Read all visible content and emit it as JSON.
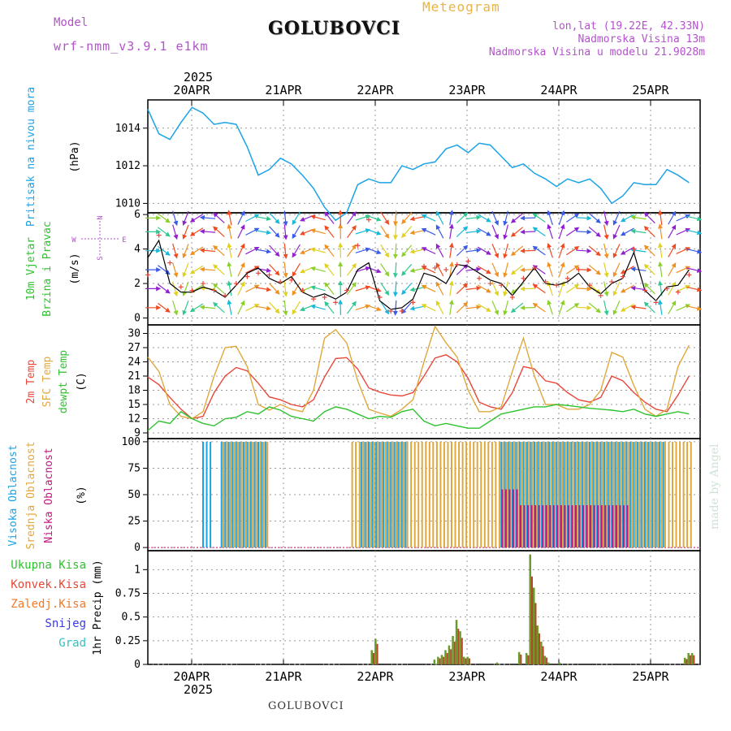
{
  "header": {
    "model_label": "Model",
    "model_name": "wrf-nmm_v3.9.1 e1km",
    "station": "GOLUBOVCI",
    "product": "Meteogram",
    "coords": "lon,lat (19.22E, 42.33N)",
    "elevation": "Nadmorska Visina 13m",
    "elevation_model": "Nadmorska Visina u modelu 21.9028m"
  },
  "footer": {
    "station": "GOLUBOVCI",
    "credit": "made by Angel"
  },
  "colors": {
    "pressure": "#1aa3e8",
    "t2m": "#e8473a",
    "sfc": "#e0a83c",
    "dewpt": "#2ec22e",
    "high_cloud": "#1aa3e8",
    "mid_cloud": "#e0a83c",
    "low_cloud": "#c0187e",
    "total_precip": "#2ec22e",
    "conv_precip": "#e8473a",
    "snow": "#3a3ae8",
    "hail": "#2ec2c2",
    "frozen": "#f07a28"
  },
  "chart_data": [
    {
      "type": "line",
      "id": "pressure",
      "ylabels": [
        "Pritisak na nivou mora",
        "(hPa)"
      ],
      "yticks": [
        1010,
        1012,
        1014
      ],
      "ylim": [
        1009.5,
        1015.5
      ],
      "x_day_labels": [
        "20APR",
        "21APR",
        "22APR",
        "23APR",
        "24APR",
        "25APR"
      ],
      "year_label": "2025",
      "grid": true,
      "x": [
        0,
        3,
        6,
        9,
        12,
        15,
        18,
        21,
        24,
        27,
        30,
        33,
        36,
        39,
        42,
        45,
        48,
        51,
        54,
        57,
        60,
        63,
        66,
        69,
        72,
        75,
        78,
        81,
        84,
        87,
        90,
        93,
        96,
        99,
        102,
        105,
        108,
        111,
        114,
        117,
        120,
        123,
        126,
        129,
        132,
        135,
        138,
        141,
        144,
        147
      ],
      "values": [
        1015.0,
        1013.7,
        1013.4,
        1014.3,
        1015.1,
        1014.8,
        1014.2,
        1014.3,
        1014.2,
        1013.0,
        1011.5,
        1011.8,
        1012.4,
        1012.1,
        1011.5,
        1010.8,
        1009.8,
        1009.1,
        1009.5,
        1011.0,
        1011.3,
        1011.1,
        1011.1,
        1012.0,
        1011.8,
        1012.1,
        1012.2,
        1012.9,
        1013.1,
        1012.7,
        1013.2,
        1013.1,
        1012.5,
        1011.9,
        1012.1,
        1011.6,
        1011.3,
        1010.9,
        1011.3,
        1011.1,
        1011.3,
        1010.8,
        1010.0,
        1010.4,
        1011.1,
        1011.0,
        1011.0,
        1011.8,
        1011.5,
        1011.1
      ]
    },
    {
      "type": "line",
      "id": "wind",
      "ylabels": [
        "10m Vjetar",
        "Brzina i Pravac",
        "(m/s)"
      ],
      "compass": [
        "N",
        "S",
        "W",
        "E"
      ],
      "yticks": [
        0,
        2,
        4,
        6
      ],
      "ylim": [
        -0.4,
        6.1
      ],
      "grid": true,
      "x": [
        0,
        3,
        6,
        9,
        12,
        15,
        18,
        21,
        24,
        27,
        30,
        33,
        36,
        39,
        42,
        45,
        48,
        51,
        54,
        57,
        60,
        63,
        66,
        69,
        72,
        75,
        78,
        81,
        84,
        87,
        90,
        93,
        96,
        99,
        102,
        105,
        108,
        111,
        114,
        117,
        120,
        123,
        126,
        129,
        132,
        135,
        138,
        141,
        144,
        147
      ],
      "speed": [
        3.5,
        4.5,
        2.0,
        1.5,
        1.5,
        1.8,
        1.6,
        1.2,
        1.9,
        2.6,
        2.9,
        2.3,
        2.0,
        2.4,
        1.5,
        1.2,
        1.4,
        1.1,
        1.5,
        2.8,
        3.2,
        1.0,
        0.5,
        0.6,
        1.1,
        2.6,
        2.4,
        2.0,
        3.1,
        3.0,
        2.6,
        2.2,
        2.0,
        1.3,
        2.1,
        2.9,
        2.0,
        1.9,
        2.1,
        2.6,
        1.8,
        1.4,
        2.0,
        2.3,
        3.8,
        1.6,
        1.0,
        1.8,
        1.9,
        2.8
      ],
      "gust": [
        2.5,
        4.8,
        3.2,
        1.8,
        1.6,
        2.0,
        1.6,
        1.3,
        2.0,
        2.4,
        2.6,
        2.5,
        2.1,
        2.2,
        1.6,
        1.1,
        1.2,
        0.9,
        1.6,
        4.2,
        5.7,
        1.2,
        0.4,
        0.4,
        0.9,
        3.0,
        2.9,
        2.8,
        3.1,
        3.3,
        2.3,
        2.0,
        1.9,
        1.2,
        2.3,
        2.9,
        2.1,
        1.9,
        2.3,
        2.8,
        1.9,
        1.3,
        2.1,
        2.4,
        4.0,
        1.6,
        0.9,
        1.7,
        1.5,
        2.5
      ],
      "arrows_per_level": [
        0.6,
        1.7,
        2.8,
        3.9,
        5.0,
        5.8
      ]
    },
    {
      "type": "line",
      "id": "temperature",
      "ylabels": [
        "2m Temp",
        "SFC Temp",
        "dewpt Temp",
        "(C)"
      ],
      "yticks": [
        9,
        12,
        15,
        18,
        21,
        24,
        27,
        30
      ],
      "ylim": [
        7.8,
        31.8
      ],
      "grid": true,
      "series": [
        {
          "name": "2m Temp",
          "key": "t2m",
          "x": [
            0,
            3,
            6,
            9,
            12,
            15,
            18,
            21,
            24,
            27,
            30,
            33,
            36,
            39,
            42,
            45,
            48,
            51,
            54,
            57,
            60,
            63,
            66,
            69,
            72,
            75,
            78,
            81,
            84,
            87,
            90,
            93,
            96,
            99,
            102,
            105,
            108,
            111,
            114,
            117,
            120,
            123,
            126,
            129,
            132,
            135,
            138,
            141,
            144,
            147
          ],
          "values": [
            20.8,
            19.2,
            16.5,
            14.0,
            12.0,
            12.5,
            17.5,
            21.0,
            22.8,
            22.1,
            19.5,
            16.6,
            16.0,
            15.0,
            14.5,
            16.0,
            20.8,
            24.7,
            24.9,
            22.5,
            18.5,
            17.6,
            17.0,
            16.8,
            17.5,
            21.0,
            24.8,
            25.5,
            24.0,
            20.5,
            15.5,
            14.5,
            14.0,
            17.5,
            23.0,
            22.5,
            20.0,
            19.5,
            17.5,
            16.0,
            15.5,
            16.5,
            21.0,
            20.0,
            17.5,
            15.5,
            14.0,
            13.5,
            17.0,
            21.0
          ]
        },
        {
          "name": "SFC Temp",
          "key": "sfc",
          "x": [
            0,
            3,
            6,
            9,
            12,
            15,
            18,
            21,
            24,
            27,
            30,
            33,
            36,
            39,
            42,
            45,
            48,
            51,
            54,
            57,
            60,
            63,
            66,
            69,
            72,
            75,
            78,
            81,
            84,
            87,
            90,
            93,
            96,
            99,
            102,
            105,
            108,
            111,
            114,
            117,
            120,
            123,
            126,
            129,
            132,
            135,
            138,
            141,
            144,
            147
          ],
          "values": [
            25.0,
            22.0,
            15.0,
            12.5,
            12.0,
            13.5,
            21.0,
            27.0,
            27.3,
            23.0,
            15.0,
            13.8,
            15.0,
            14.0,
            13.5,
            18.0,
            29.0,
            30.8,
            28.0,
            20.0,
            14.0,
            13.2,
            12.5,
            14.0,
            16.0,
            24.0,
            31.5,
            28.0,
            25.0,
            18.0,
            13.5,
            13.5,
            14.5,
            22.0,
            29.0,
            21.0,
            15.0,
            15.0,
            14.0,
            14.0,
            15.0,
            18.0,
            26.0,
            25.0,
            19.0,
            14.0,
            12.5,
            14.0,
            23.0,
            27.5
          ]
        },
        {
          "name": "dewpt Temp",
          "key": "dewpt",
          "x": [
            0,
            3,
            6,
            9,
            12,
            15,
            18,
            21,
            24,
            27,
            30,
            33,
            36,
            39,
            42,
            45,
            48,
            51,
            54,
            57,
            60,
            63,
            66,
            69,
            72,
            75,
            78,
            81,
            84,
            87,
            90,
            93,
            96,
            99,
            102,
            105,
            108,
            111,
            114,
            117,
            120,
            123,
            126,
            129,
            132,
            135,
            138,
            141,
            144,
            147
          ],
          "values": [
            9.5,
            11.5,
            11.0,
            13.5,
            12.0,
            11.0,
            10.5,
            12.0,
            12.3,
            13.5,
            13.0,
            14.5,
            13.8,
            12.5,
            12.0,
            11.5,
            13.5,
            14.5,
            14.0,
            13.0,
            12.0,
            12.5,
            12.3,
            13.5,
            14.0,
            11.5,
            10.5,
            11.0,
            10.5,
            10.0,
            10.0,
            11.5,
            13.0,
            13.5,
            14.0,
            14.5,
            14.5,
            15.0,
            14.8,
            14.5,
            14.2,
            14.0,
            13.8,
            13.5,
            14.0,
            13.0,
            12.5,
            13.0,
            13.5,
            13.0
          ]
        }
      ]
    },
    {
      "type": "bar",
      "id": "cloud",
      "ylabels": [
        "Visoka Oblacnost",
        "Srednja Oblacnost",
        "Niska Oblacnost",
        "(%)"
      ],
      "yticks": [
        0,
        25,
        50,
        75,
        100
      ],
      "ylim": [
        -3,
        103
      ],
      "grid": true,
      "segments": [
        {
          "key": "high",
          "x_range": [
            15,
            17
          ],
          "level": 100
        },
        {
          "key": "high",
          "x_range": [
            20,
            32
          ],
          "level": 100
        },
        {
          "key": "mid",
          "x_range": [
            20,
            32
          ],
          "level": 100
        },
        {
          "key": "mid",
          "x_range": [
            55,
            98
          ],
          "level": 100
        },
        {
          "key": "high",
          "x_range": [
            58,
            70
          ],
          "level": 100
        },
        {
          "key": "high",
          "x_range": [
            96,
            140
          ],
          "level": 100
        },
        {
          "key": "mid",
          "x_range": [
            98,
            147
          ],
          "level": 100
        },
        {
          "key": "low",
          "x_range": [
            96,
            100
          ],
          "level": 55
        },
        {
          "key": "low",
          "x_range": [
            101,
            130
          ],
          "level": 40
        }
      ]
    },
    {
      "type": "bar",
      "id": "precip",
      "ylabels": [
        "1hr Precip (mm)"
      ],
      "legend": [
        "Ukupna Kisa",
        "Konvek.Kisa",
        "Zaledj.Kisa",
        "Snijeg",
        "Grad"
      ],
      "yticks": [
        0,
        0.25,
        0.5,
        0.75,
        1
      ],
      "ytick_labels": [
        "0",
        "0.25",
        "0.5",
        "0.75",
        "1"
      ],
      "ylim": [
        0,
        1.2
      ],
      "grid": true,
      "x": [
        61,
        62,
        78,
        79,
        80,
        81,
        82,
        83,
        84,
        85,
        86,
        87,
        95,
        101,
        103,
        104,
        105,
        106,
        107,
        108,
        109,
        112,
        146,
        147,
        148
      ],
      "values": [
        0.15,
        0.27,
        0.05,
        0.08,
        0.1,
        0.15,
        0.2,
        0.3,
        0.47,
        0.35,
        0.08,
        0.08,
        0.02,
        0.13,
        0.12,
        1.16,
        0.81,
        0.41,
        0.24,
        0.09,
        0.02,
        0.02,
        0.07,
        0.12,
        0.12
      ],
      "conv": [
        0.05,
        0.1,
        0.0,
        0.03,
        0.03,
        0.05,
        0.07,
        0.1,
        0.12,
        0.05,
        0.03,
        0.03,
        0.0,
        0.05,
        0.05,
        0.25,
        0.25,
        0.15,
        0.1,
        0.03,
        0.0,
        0.0,
        0.02,
        0.05,
        0.05
      ]
    }
  ]
}
